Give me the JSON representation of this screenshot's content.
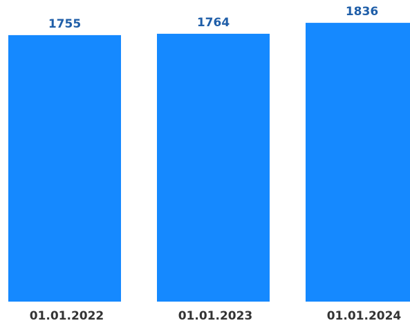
{
  "chart_data": {
    "type": "bar",
    "categories": [
      "01.01.2022",
      "01.01.2023",
      "01.01.2024"
    ],
    "values": [
      1755,
      1764,
      1836
    ],
    "color": "#1589ff",
    "ylim": [
      0,
      2000
    ]
  }
}
